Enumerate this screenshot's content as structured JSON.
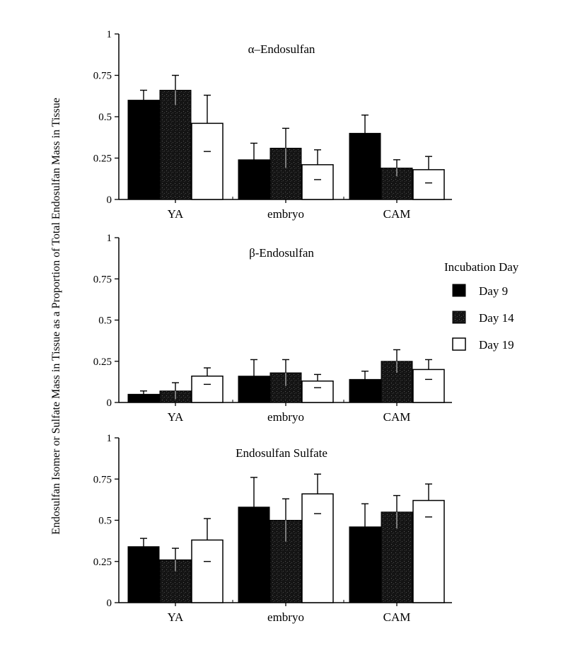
{
  "figure": {
    "ylabel": "Endosulfan Isomer or Sulfate Mass in Tissue as a Proportion of Total Endosulfan Mass in Tissue"
  },
  "legend": {
    "title": "Incubation Day",
    "placement": "right-middle",
    "items": [
      {
        "label": "Day 9",
        "color": "#000000",
        "style": "solid-black"
      },
      {
        "label": "Day 14",
        "color": "#222222",
        "style": "dark-speckled"
      },
      {
        "label": "Day 19",
        "color": "#ffffff",
        "style": "white"
      }
    ]
  },
  "chart_data": [
    {
      "type": "bar",
      "title": "α–Endosulfan",
      "xlabel": "",
      "ylabel": "",
      "ylim": [
        0,
        1
      ],
      "yticks": [
        "0",
        "0.25",
        "0.5",
        "0.75",
        "1"
      ],
      "grid": false,
      "categories": [
        "YA",
        "embryo",
        "CAM"
      ],
      "series": [
        {
          "name": "Day 9",
          "values": [
            0.6,
            0.24,
            0.4
          ],
          "errors": [
            0.06,
            0.1,
            0.11
          ]
        },
        {
          "name": "Day 14",
          "values": [
            0.66,
            0.31,
            0.19
          ],
          "errors": [
            0.09,
            0.12,
            0.05
          ]
        },
        {
          "name": "Day 19",
          "values": [
            0.46,
            0.21,
            0.18
          ],
          "errors": [
            0.17,
            0.09,
            0.08
          ]
        }
      ]
    },
    {
      "type": "bar",
      "title": "β-Endosulfan",
      "xlabel": "",
      "ylabel": "",
      "ylim": [
        0,
        1
      ],
      "yticks": [
        "0",
        "0.25",
        "0.5",
        "0.75",
        "1"
      ],
      "grid": false,
      "categories": [
        "YA",
        "embryo",
        "CAM"
      ],
      "series": [
        {
          "name": "Day 9",
          "values": [
            0.05,
            0.16,
            0.14
          ],
          "errors": [
            0.02,
            0.1,
            0.05
          ]
        },
        {
          "name": "Day 14",
          "values": [
            0.07,
            0.18,
            0.25
          ],
          "errors": [
            0.05,
            0.08,
            0.07
          ]
        },
        {
          "name": "Day 19",
          "values": [
            0.16,
            0.13,
            0.2
          ],
          "errors": [
            0.05,
            0.04,
            0.06
          ]
        }
      ]
    },
    {
      "type": "bar",
      "title": "Endosulfan Sulfate",
      "xlabel": "",
      "ylabel": "",
      "ylim": [
        0,
        1
      ],
      "yticks": [
        "0",
        "0.25",
        "0.5",
        "0.75",
        "1"
      ],
      "grid": false,
      "categories": [
        "YA",
        "embryo",
        "CAM"
      ],
      "series": [
        {
          "name": "Day 9",
          "values": [
            0.34,
            0.58,
            0.46
          ],
          "errors": [
            0.05,
            0.18,
            0.14
          ]
        },
        {
          "name": "Day 14",
          "values": [
            0.26,
            0.5,
            0.55
          ],
          "errors": [
            0.07,
            0.13,
            0.1
          ]
        },
        {
          "name": "Day 19",
          "values": [
            0.38,
            0.66,
            0.62
          ],
          "errors": [
            0.13,
            0.12,
            0.1
          ]
        }
      ]
    }
  ]
}
